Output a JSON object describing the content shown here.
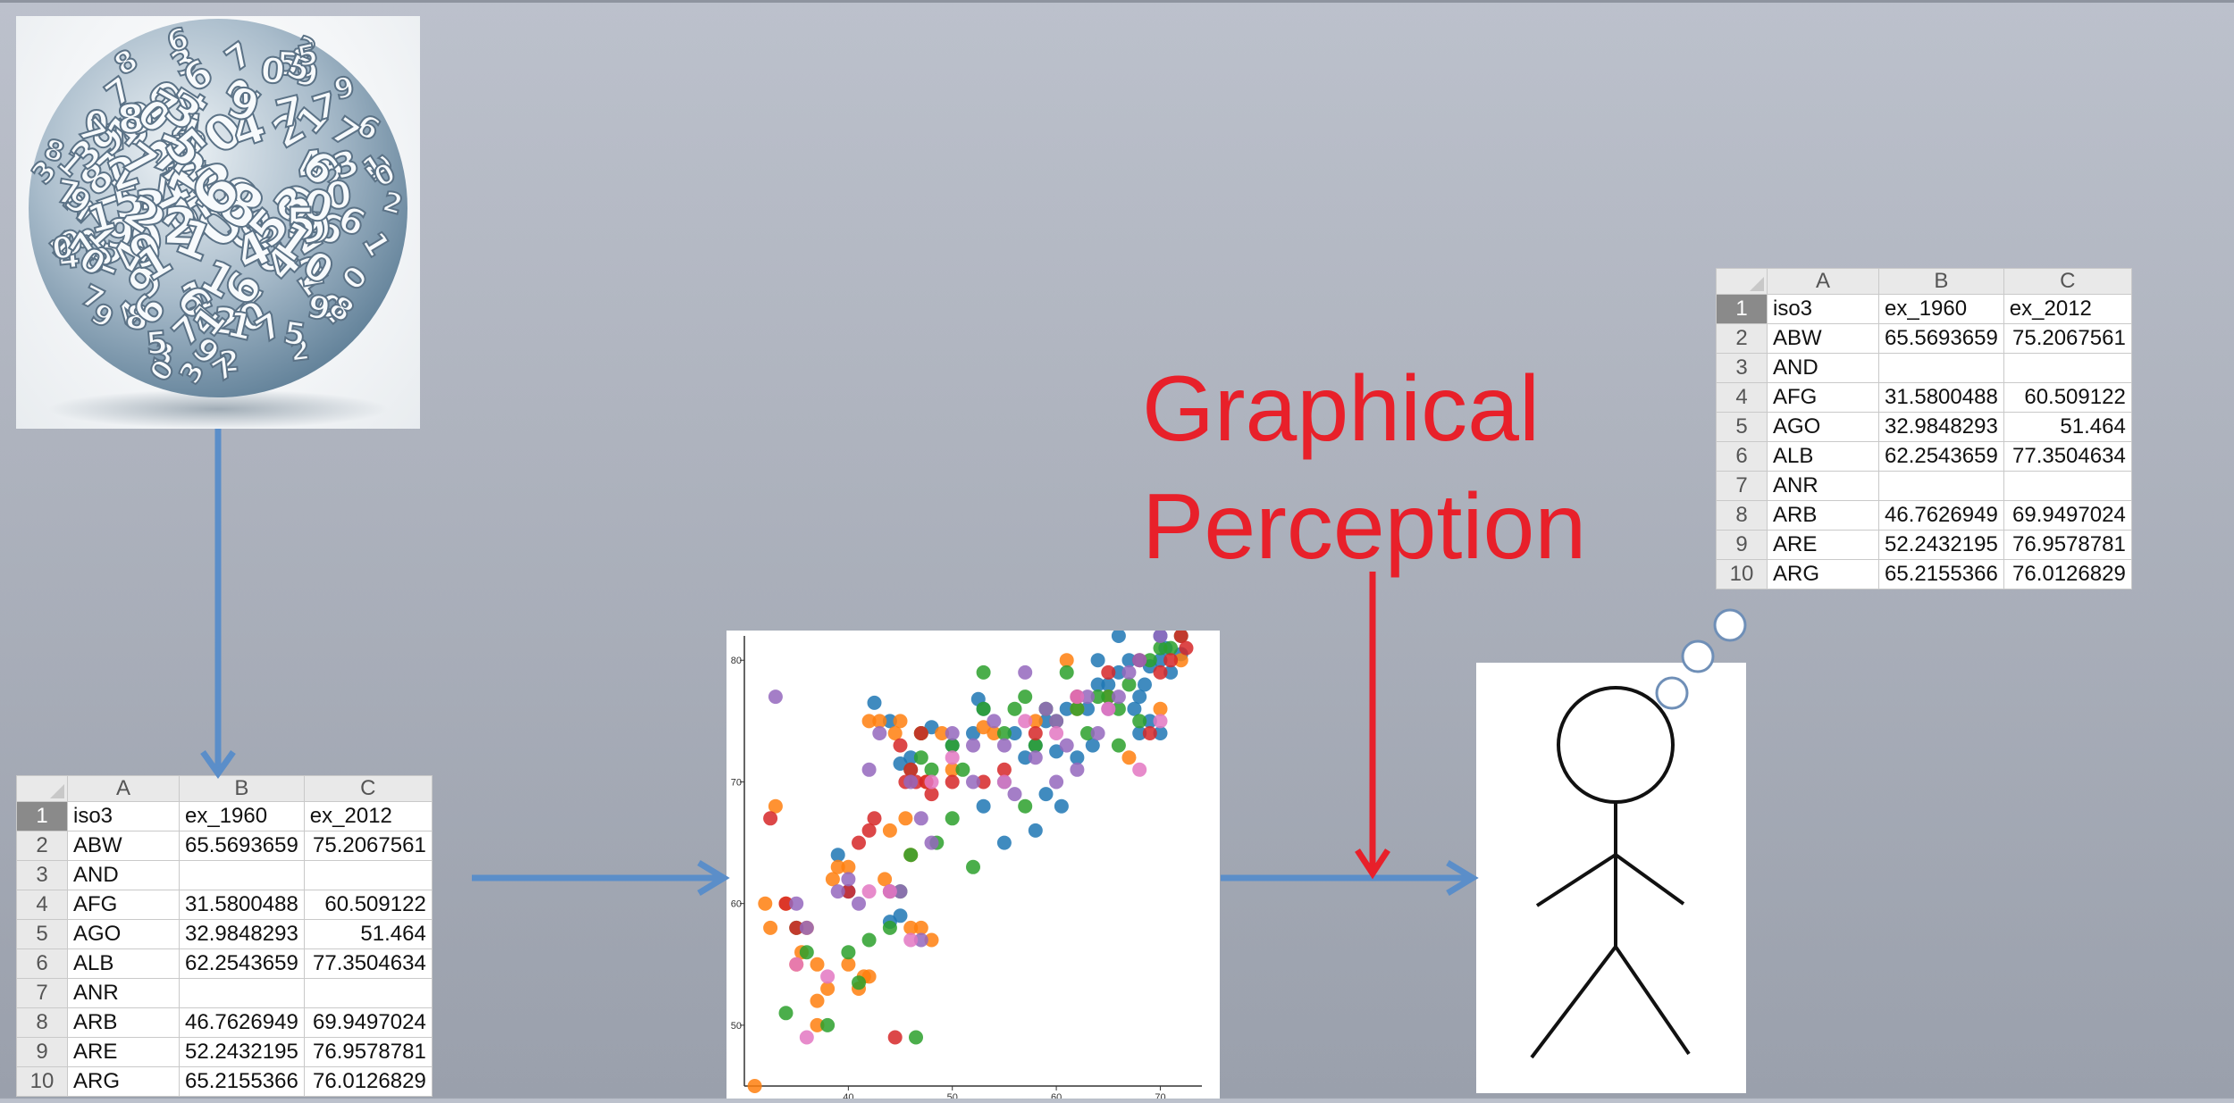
{
  "spreadsheet": {
    "columns": [
      "A",
      "B",
      "C"
    ],
    "rows": [
      {
        "n": "1",
        "a": "iso3",
        "b": "ex_1960",
        "c": "ex_2012"
      },
      {
        "n": "2",
        "a": "ABW",
        "b": "65.5693659",
        "c": "75.2067561"
      },
      {
        "n": "3",
        "a": "AND",
        "b": "",
        "c": ""
      },
      {
        "n": "4",
        "a": "AFG",
        "b": "31.5800488",
        "c": "60.509122"
      },
      {
        "n": "5",
        "a": "AGO",
        "b": "32.9848293",
        "c": "51.464"
      },
      {
        "n": "6",
        "a": "ALB",
        "b": "62.2543659",
        "c": "77.3504634"
      },
      {
        "n": "7",
        "a": "ANR",
        "b": "",
        "c": ""
      },
      {
        "n": "8",
        "a": "ARB",
        "b": "46.7626949",
        "c": "69.9497024"
      },
      {
        "n": "9",
        "a": "ARE",
        "b": "52.2432195",
        "c": "76.9578781"
      },
      {
        "n": "10",
        "a": "ARG",
        "b": "65.2155366",
        "c": "76.0126829"
      }
    ]
  },
  "title": {
    "line1": "Graphical",
    "line2": "Perception"
  },
  "colors": {
    "arrow_blue": "#5b8ec9",
    "arrow_red": "#e8202a",
    "title_red": "#e8202a",
    "series": [
      "#1f77b4",
      "#ff7f0e",
      "#2ca02c",
      "#d62728",
      "#9467bd",
      "#e377c2"
    ]
  },
  "icons": [
    "number-sphere-image",
    "stick-figure-icon",
    "thought-bubble-icon"
  ],
  "chart_data": {
    "type": "scatter",
    "x_ticks": [
      "40",
      "50",
      "60",
      "70"
    ],
    "y_ticks": [
      "50",
      "60",
      "70",
      "80"
    ],
    "xlim": [
      30,
      74
    ],
    "ylim": [
      45,
      82
    ],
    "series": [
      {
        "color": "#1f77b4",
        "points": [
          [
            42.5,
            76.5
          ],
          [
            44,
            75
          ],
          [
            45,
            71.5
          ],
          [
            46,
            72
          ],
          [
            48,
            74.5
          ],
          [
            50,
            73
          ],
          [
            52,
            74
          ],
          [
            52.5,
            76.8
          ],
          [
            53,
            76
          ],
          [
            55,
            70
          ],
          [
            56,
            74
          ],
          [
            57,
            72
          ],
          [
            58,
            73
          ],
          [
            59,
            75
          ],
          [
            60,
            72.5
          ],
          [
            60.5,
            68
          ],
          [
            61,
            76
          ],
          [
            62,
            77
          ],
          [
            63,
            76
          ],
          [
            64,
            78
          ],
          [
            65,
            78
          ],
          [
            66,
            79
          ],
          [
            67,
            80
          ],
          [
            67.5,
            76
          ],
          [
            68,
            77
          ],
          [
            68.5,
            78
          ],
          [
            69,
            79.5
          ],
          [
            70,
            80
          ],
          [
            70.5,
            81
          ],
          [
            71,
            79
          ],
          [
            72,
            80.5
          ],
          [
            68,
            74
          ],
          [
            69,
            75
          ],
          [
            70,
            74
          ],
          [
            62,
            72
          ],
          [
            58,
            66
          ],
          [
            55,
            65
          ],
          [
            45,
            59
          ],
          [
            44,
            58.5
          ],
          [
            40,
            61
          ],
          [
            39,
            64
          ],
          [
            64,
            80
          ],
          [
            66,
            82
          ],
          [
            70,
            82
          ],
          [
            59,
            69
          ],
          [
            63.5,
            73
          ],
          [
            53,
            68
          ]
        ]
      },
      {
        "color": "#ff7f0e",
        "points": [
          [
            31,
            45
          ],
          [
            32,
            60
          ],
          [
            32.5,
            58
          ],
          [
            33,
            68
          ],
          [
            34,
            60
          ],
          [
            35,
            55
          ],
          [
            35.5,
            56
          ],
          [
            36,
            58
          ],
          [
            37,
            52
          ],
          [
            37,
            50
          ],
          [
            38,
            53
          ],
          [
            38.5,
            62
          ],
          [
            39,
            63
          ],
          [
            40,
            63
          ],
          [
            40,
            55
          ],
          [
            41,
            53
          ],
          [
            41.5,
            54
          ],
          [
            42,
            54
          ],
          [
            42,
            75
          ],
          [
            43,
            75
          ],
          [
            43.5,
            62
          ],
          [
            44,
            61
          ],
          [
            44.5,
            74
          ],
          [
            45,
            75
          ],
          [
            45.5,
            67
          ],
          [
            46,
            64
          ],
          [
            47,
            58
          ],
          [
            47,
            74
          ],
          [
            47.5,
            70
          ],
          [
            49,
            74
          ],
          [
            50,
            71
          ],
          [
            53,
            74.5
          ],
          [
            54,
            74
          ],
          [
            58,
            75
          ],
          [
            61,
            80
          ],
          [
            62,
            76
          ],
          [
            65,
            77
          ],
          [
            67,
            72
          ],
          [
            70,
            76
          ],
          [
            72,
            80
          ],
          [
            44,
            66
          ],
          [
            37,
            55
          ],
          [
            46,
            58
          ],
          [
            48,
            57
          ]
        ]
      },
      {
        "color": "#2ca02c",
        "points": [
          [
            34,
            51
          ],
          [
            35,
            58
          ],
          [
            36,
            56
          ],
          [
            38,
            50
          ],
          [
            40,
            56
          ],
          [
            41,
            53.5
          ],
          [
            42,
            57
          ],
          [
            44,
            58
          ],
          [
            45,
            61
          ],
          [
            46,
            64
          ],
          [
            46.5,
            49
          ],
          [
            47,
            72
          ],
          [
            48,
            71
          ],
          [
            48.5,
            65
          ],
          [
            50,
            67
          ],
          [
            51,
            71
          ],
          [
            52,
            63
          ],
          [
            53,
            76
          ],
          [
            53,
            79
          ],
          [
            55,
            74
          ],
          [
            56,
            76
          ],
          [
            57,
            77
          ],
          [
            58,
            73
          ],
          [
            59,
            76
          ],
          [
            60,
            75
          ],
          [
            61,
            79
          ],
          [
            62,
            76
          ],
          [
            63,
            74
          ],
          [
            64,
            77
          ],
          [
            65,
            77
          ],
          [
            66,
            76
          ],
          [
            67,
            78
          ],
          [
            68,
            75
          ],
          [
            69,
            80
          ],
          [
            70,
            81
          ],
          [
            71,
            81
          ],
          [
            72,
            82
          ],
          [
            46,
            71
          ],
          [
            47,
            74
          ],
          [
            57,
            68
          ],
          [
            66,
            73
          ],
          [
            50,
            73
          ]
        ]
      },
      {
        "color": "#d62728",
        "points": [
          [
            32.5,
            67
          ],
          [
            34,
            60
          ],
          [
            35,
            58
          ],
          [
            40,
            61
          ],
          [
            41,
            65
          ],
          [
            42,
            66
          ],
          [
            42.5,
            67
          ],
          [
            44.5,
            49
          ],
          [
            45.5,
            70
          ],
          [
            46,
            71
          ],
          [
            46.5,
            70
          ],
          [
            47,
            74
          ],
          [
            48,
            69
          ],
          [
            50,
            70
          ],
          [
            53,
            70
          ],
          [
            55,
            71
          ],
          [
            58,
            74
          ],
          [
            62,
            77
          ],
          [
            65,
            79
          ],
          [
            68,
            80
          ],
          [
            70,
            79
          ],
          [
            71,
            80
          ],
          [
            72.5,
            81
          ],
          [
            45,
            73
          ],
          [
            47.5,
            70
          ],
          [
            69,
            74
          ],
          [
            72,
            82
          ]
        ]
      },
      {
        "color": "#9467bd",
        "points": [
          [
            33,
            77
          ],
          [
            35,
            60
          ],
          [
            36,
            58
          ],
          [
            39,
            61
          ],
          [
            40,
            62
          ],
          [
            41,
            60
          ],
          [
            42,
            71
          ],
          [
            43,
            74
          ],
          [
            44,
            61
          ],
          [
            45,
            61
          ],
          [
            46,
            70
          ],
          [
            47,
            67
          ],
          [
            48,
            65
          ],
          [
            50,
            74
          ],
          [
            52,
            70
          ],
          [
            54,
            75
          ],
          [
            55,
            73
          ],
          [
            56,
            69
          ],
          [
            57,
            79
          ],
          [
            58,
            72
          ],
          [
            59,
            76
          ],
          [
            60,
            75
          ],
          [
            61,
            73
          ],
          [
            62,
            71
          ],
          [
            63,
            77
          ],
          [
            64,
            74
          ],
          [
            65,
            76
          ],
          [
            66,
            77
          ],
          [
            67,
            79
          ],
          [
            68,
            80
          ],
          [
            70,
            82
          ],
          [
            47,
            57
          ],
          [
            52,
            73
          ],
          [
            60,
            70
          ]
        ]
      },
      {
        "color": "#e377c2",
        "points": [
          [
            35,
            55
          ],
          [
            36,
            49
          ],
          [
            38,
            54
          ],
          [
            42,
            61
          ],
          [
            44,
            61
          ],
          [
            46,
            57
          ],
          [
            48,
            70
          ],
          [
            50,
            72
          ],
          [
            55,
            70
          ],
          [
            57,
            75
          ],
          [
            60,
            74
          ],
          [
            62,
            77
          ],
          [
            65,
            76
          ],
          [
            68,
            71
          ],
          [
            70,
            75
          ]
        ]
      }
    ]
  }
}
